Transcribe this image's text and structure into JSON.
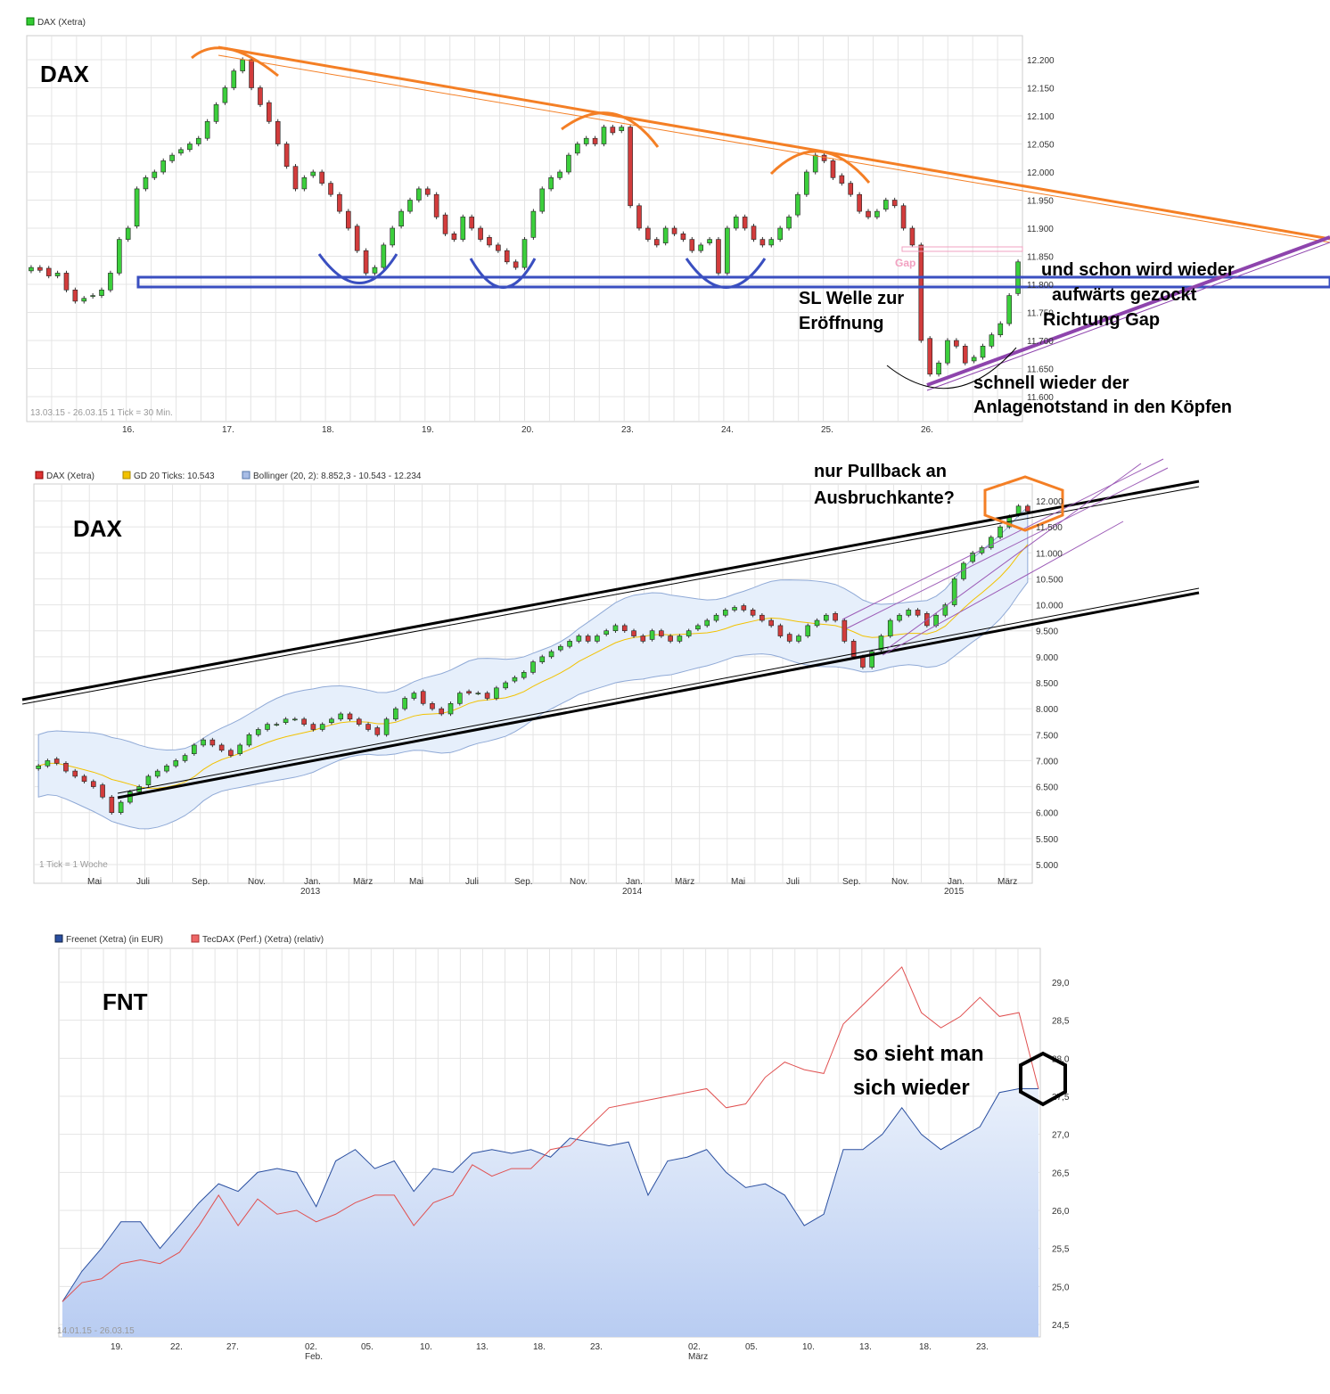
{
  "chart_data": [
    {
      "type": "candlestick",
      "legend": [
        "DAX (Xetra)"
      ],
      "label": "DAX",
      "footer": "13.03.15 - 26.03.15   1 Tick = 30 Min.",
      "x_ticks": [
        "16.",
        "17.",
        "18.",
        "19.",
        "20.",
        "23.",
        "24.",
        "25.",
        "26."
      ],
      "y_ticks": [
        "12.200",
        "12.150",
        "12.100",
        "12.050",
        "12.000",
        "11.950",
        "11.900",
        "11.850",
        "11.800",
        "11.750",
        "11.700",
        "11.650",
        "11.600"
      ],
      "ylim": [
        11600,
        12200
      ],
      "closes": [
        11830,
        11825,
        11815,
        11820,
        11790,
        11770,
        11775,
        11780,
        11790,
        11820,
        11880,
        11900,
        11970,
        11990,
        12000,
        12020,
        12030,
        12040,
        12050,
        12060,
        12090,
        12120,
        12150,
        12180,
        12200,
        12150,
        12120,
        12090,
        12050,
        12010,
        11970,
        11990,
        12000,
        11980,
        11960,
        11930,
        11900,
        11860,
        11820,
        11830,
        11870,
        11900,
        11930,
        11950,
        11970,
        11960,
        11920,
        11890,
        11880,
        11920,
        11900,
        11880,
        11870,
        11860,
        11840,
        11830,
        11880,
        11930,
        11970,
        11990,
        12000,
        12030,
        12050,
        12060,
        12050,
        12080,
        12070,
        12080,
        11940,
        11900,
        11880,
        11870,
        11900,
        11890,
        11880,
        11860,
        11870,
        11880,
        11820,
        11900,
        11920,
        11900,
        11880,
        11870,
        11880,
        11900,
        11920,
        11960,
        12000,
        12030,
        12020,
        11990,
        11980,
        11960,
        11930,
        11920,
        11930,
        11950,
        11940,
        11900,
        11870,
        11700,
        11640,
        11660,
        11700,
        11690,
        11660,
        11670,
        11690,
        11710,
        11730,
        11780,
        11840
      ],
      "annotations": [
        "Gap",
        "SL Welle zur Eröffnung",
        "und schon wird wieder aufwärts gezockt Richtung Gap",
        "schnell wieder der Anlagenotstand in den Köpfen"
      ]
    },
    {
      "type": "candlestick",
      "legend": [
        "DAX (Xetra)",
        "GD 20 Ticks: 10.543",
        "Bollinger (20, 2): 8.852,3 - 10.543 - 12.234"
      ],
      "label": "DAX",
      "footer": "1 Tick = 1 Woche",
      "x_ticks": [
        "Mai",
        "Juli",
        "Sep.",
        "Nov.",
        "Jan.",
        "März",
        "Mai",
        "Juli",
        "Sep.",
        "Nov.",
        "Jan.",
        "März",
        "Mai",
        "Juli",
        "Sep.",
        "Nov.",
        "Jan.",
        "März"
      ],
      "year_ticks": [
        "2013",
        "2014",
        "2015"
      ],
      "y_ticks": [
        "12.000",
        "11.500",
        "11.000",
        "10.500",
        "10.000",
        "9.500",
        "9.000",
        "8.500",
        "8.000",
        "7.500",
        "7.000",
        "6.500",
        "6.000",
        "5.500",
        "5.000"
      ],
      "ylim": [
        5000,
        12000
      ],
      "closes": [
        6900,
        7000,
        6950,
        6800,
        6700,
        6600,
        6500,
        6300,
        6000,
        6200,
        6400,
        6500,
        6700,
        6800,
        6900,
        7000,
        7100,
        7300,
        7400,
        7300,
        7200,
        7100,
        7300,
        7500,
        7600,
        7700,
        7700,
        7800,
        7800,
        7700,
        7600,
        7700,
        7800,
        7900,
        7800,
        7700,
        7600,
        7500,
        7800,
        8000,
        8200,
        8300,
        8100,
        8000,
        7900,
        8100,
        8300,
        8300,
        8300,
        8200,
        8400,
        8500,
        8600,
        8700,
        8900,
        9000,
        9100,
        9200,
        9300,
        9400,
        9300,
        9400,
        9500,
        9600,
        9500,
        9400,
        9300,
        9500,
        9400,
        9300,
        9400,
        9500,
        9600,
        9700,
        9800,
        9900,
        9950,
        9900,
        9800,
        9700,
        9600,
        9400,
        9300,
        9400,
        9600,
        9700,
        9800,
        9700,
        9300,
        9000,
        8800,
        9100,
        9400,
        9700,
        9800,
        9900,
        9800,
        9600,
        9800,
        10000,
        10500,
        10800,
        11000,
        11100,
        11300,
        11500,
        11700,
        11900,
        11800
      ],
      "annotations": [
        "nur Pullback an Ausbruchkante?"
      ]
    },
    {
      "type": "area",
      "series": [
        {
          "name": "Freenet (Xetra) (in EUR)",
          "values": [
            24.8,
            25.2,
            25.5,
            25.85,
            25.85,
            25.5,
            25.8,
            26.1,
            26.35,
            26.25,
            26.5,
            26.55,
            26.5,
            26.05,
            26.65,
            26.8,
            26.55,
            26.65,
            26.25,
            26.55,
            26.5,
            26.75,
            26.8,
            26.75,
            26.8,
            26.7,
            26.95,
            26.9,
            26.85,
            26.9,
            26.2,
            26.65,
            26.7,
            26.8,
            26.5,
            26.3,
            26.35,
            26.2,
            25.8,
            25.95,
            26.8,
            26.8,
            27.0,
            27.35,
            27.0,
            26.8,
            26.95,
            27.1,
            27.55,
            27.6,
            27.6
          ]
        },
        {
          "name": "TecDAX (Perf.) (Xetra) (relativ)",
          "values": [
            24.8,
            25.05,
            25.1,
            25.3,
            25.35,
            25.3,
            25.45,
            25.8,
            26.2,
            25.8,
            26.15,
            25.95,
            26.0,
            25.85,
            25.95,
            26.1,
            26.2,
            26.2,
            25.8,
            26.1,
            26.2,
            26.6,
            26.45,
            26.55,
            26.55,
            26.8,
            26.85,
            27.1,
            27.35,
            27.4,
            27.45,
            27.5,
            27.55,
            27.6,
            27.35,
            27.4,
            27.75,
            27.95,
            27.85,
            27.8,
            28.45,
            28.7,
            28.95,
            29.2,
            28.6,
            28.4,
            28.55,
            28.8,
            28.55,
            28.6,
            27.6
          ]
        }
      ],
      "label": "FNT",
      "footer": "14.01.15 - 26.03.15",
      "x_ticks": [
        "19.",
        "22.",
        "27.",
        "02.",
        "05.",
        "10.",
        "13.",
        "18.",
        "23.",
        "02.",
        "05.",
        "10.",
        "13.",
        "18.",
        "23."
      ],
      "month_ticks": [
        "Feb.",
        "März"
      ],
      "y_ticks": [
        "29,0",
        "28,5",
        "28,0",
        "27,5",
        "27,0",
        "26,5",
        "26,0",
        "25,5",
        "25,0",
        "24,5"
      ],
      "ylim": [
        24.45,
        29.2
      ],
      "annotations": [
        "so sieht man sich wieder"
      ]
    }
  ]
}
